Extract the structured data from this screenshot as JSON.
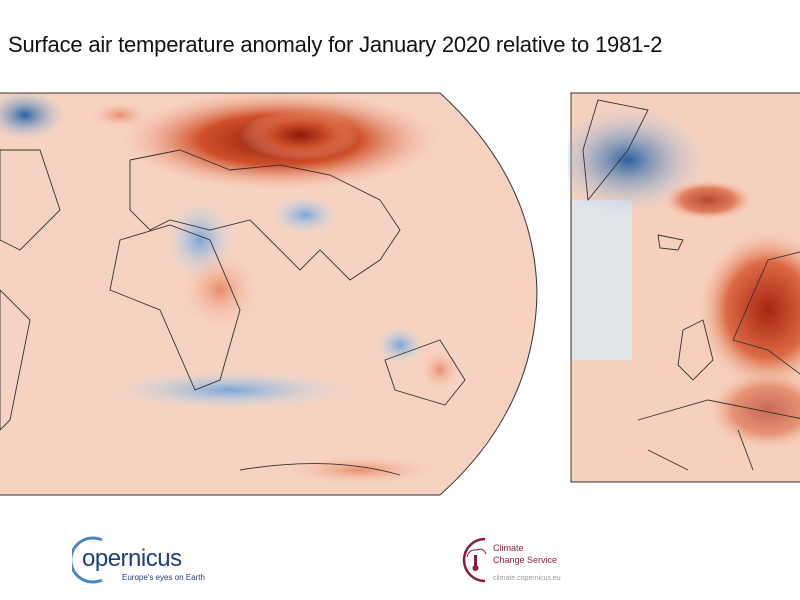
{
  "title": "Surface air temperature anomaly for January 2020 relative to 1981-2",
  "maps": {
    "world": {
      "projection": "robinson",
      "content": "temperature anomaly"
    },
    "europe": {
      "content": "temperature anomaly"
    }
  },
  "colors": {
    "warm": "#d6542e",
    "strong_warm": "#9b1b0c",
    "pale_warm": "#f8d5c4",
    "cool": "#8fb5dc",
    "strong_cool": "#1f5a9c"
  },
  "logos": {
    "copernicus": {
      "name": "opernicus",
      "tagline": "Europe's eyes on Earth"
    },
    "c3s": {
      "line1": "Climate",
      "line2": "Change Service",
      "url": "climate.copernicus.eu"
    }
  }
}
